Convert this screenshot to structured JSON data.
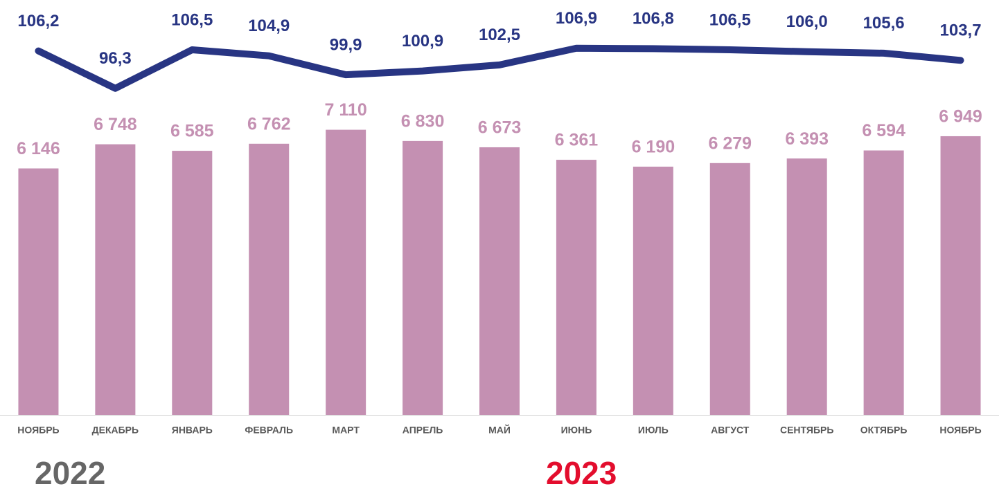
{
  "chart_data": {
    "type": "bar_line",
    "categories": [
      "НОЯБРЬ",
      "ДЕКАБРЬ",
      "ЯНВАРЬ",
      "ФЕВРАЛЬ",
      "МАРТ",
      "АПРЕЛЬ",
      "МАЙ",
      "ИЮНЬ",
      "ИЮЛЬ",
      "АВГУСТ",
      "СЕНТЯБРЬ",
      "ОКТЯБРЬ",
      "НОЯБРЬ"
    ],
    "series": [
      {
        "type": "bar",
        "color": "#c490b2",
        "values": [
          6146,
          6748,
          6585,
          6762,
          7110,
          6830,
          6673,
          6361,
          6190,
          6279,
          6393,
          6594,
          6949
        ],
        "value_labels": [
          "6 146",
          "6 748",
          "6 585",
          "6 762",
          "7 110",
          "6 830",
          "6 673",
          "6 361",
          "6 190",
          "6 279",
          "6 393",
          "6 594",
          "6 949"
        ]
      },
      {
        "type": "line",
        "axis": "y2",
        "color": "#283583",
        "values": [
          106.2,
          96.3,
          106.5,
          104.9,
          99.9,
          100.9,
          102.5,
          106.9,
          106.8,
          106.5,
          106.0,
          105.6,
          103.7
        ],
        "value_labels": [
          "106,2",
          "96,3",
          "106,5",
          "104,9",
          "99,9",
          "100,9",
          "102,5",
          "106,9",
          "106,8",
          "106,5",
          "106,0",
          "105,6",
          "103,7"
        ]
      }
    ],
    "ylim": [
      0,
      10000
    ],
    "y2lim": [
      10,
      116
    ],
    "grid": false,
    "annotations": [
      {
        "text": "2022",
        "color": "#666666"
      },
      {
        "text": "2023",
        "color": "#e30d2d"
      }
    ]
  }
}
